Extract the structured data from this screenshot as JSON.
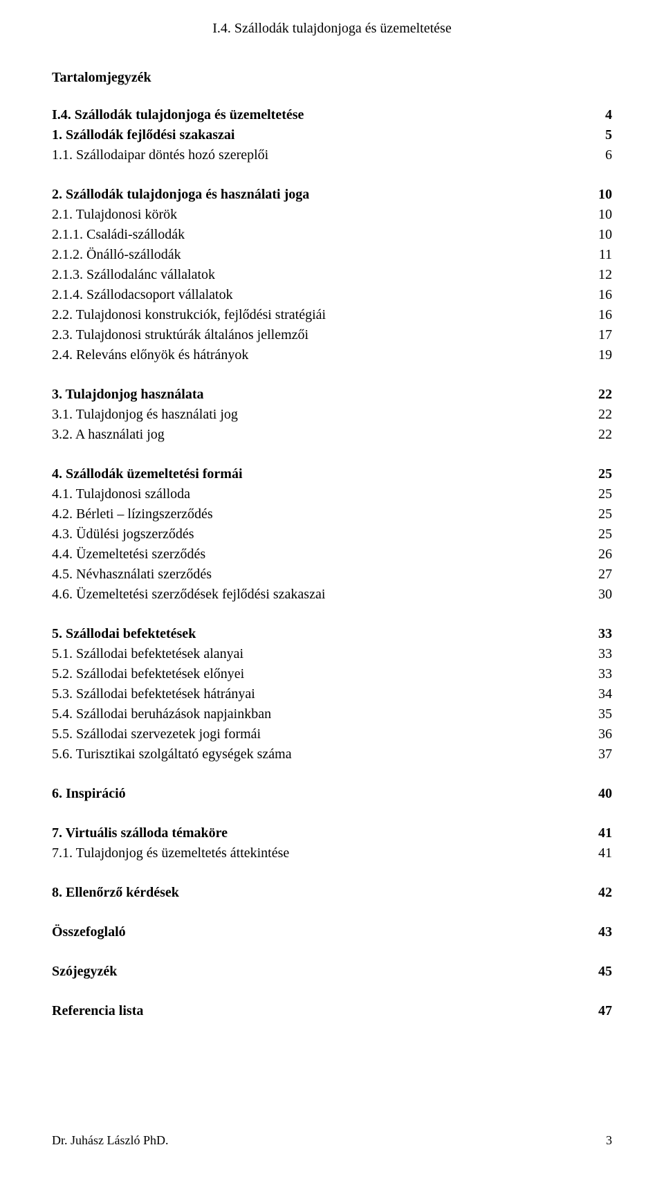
{
  "header": "I.4. Szállodák tulajdonjoga és üzemeltetése",
  "tocTitle": "Tartalomjegyzék",
  "sections": [
    {
      "items": [
        {
          "label": "I.4. Szállodák tulajdonjoga és üzemeltetése",
          "page": "4",
          "bold": true
        },
        {
          "label": "1. Szállodák fejlődési szakaszai",
          "page": "5",
          "bold": true
        },
        {
          "label": "1.1. Szállodaipar döntés hozó szereplői",
          "page": "6",
          "bold": false
        }
      ]
    },
    {
      "items": [
        {
          "label": "2. Szállodák tulajdonjoga és használati joga",
          "page": "10",
          "bold": true
        },
        {
          "label": "2.1. Tulajdonosi körök",
          "page": "10",
          "bold": false
        },
        {
          "label": "2.1.1. Családi-szállodák",
          "page": "10",
          "bold": false
        },
        {
          "label": "2.1.2. Önálló-szállodák",
          "page": "11",
          "bold": false
        },
        {
          "label": "2.1.3. Szállodalánc vállalatok",
          "page": "12",
          "bold": false
        },
        {
          "label": "2.1.4. Szállodacsoport vállalatok",
          "page": "16",
          "bold": false
        },
        {
          "label": "2.2. Tulajdonosi konstrukciók, fejlődési stratégiái",
          "page": "16",
          "bold": false
        },
        {
          "label": "2.3. Tulajdonosi struktúrák általános jellemzői",
          "page": "17",
          "bold": false
        },
        {
          "label": "2.4. Releváns előnyök és hátrányok",
          "page": "19",
          "bold": false
        }
      ]
    },
    {
      "items": [
        {
          "label": "3. Tulajdonjog használata",
          "page": "22",
          "bold": true
        },
        {
          "label": "3.1. Tulajdonjog és használati jog",
          "page": "22",
          "bold": false
        },
        {
          "label": "3.2. A használati jog",
          "page": "22",
          "bold": false
        }
      ]
    },
    {
      "items": [
        {
          "label": "4. Szállodák üzemeltetési formái",
          "page": "25",
          "bold": true
        },
        {
          "label": "4.1. Tulajdonosi szálloda",
          "page": "25",
          "bold": false
        },
        {
          "label": "4.2. Bérleti – lízingszerződés",
          "page": "25",
          "bold": false
        },
        {
          "label": "4.3. Üdülési jogszerződés",
          "page": "25",
          "bold": false
        },
        {
          "label": "4.4. Üzemeltetési szerződés",
          "page": "26",
          "bold": false
        },
        {
          "label": "4.5. Névhasználati szerződés",
          "page": "27",
          "bold": false
        },
        {
          "label": "4.6. Üzemeltetési szerződések fejlődési szakaszai",
          "page": "30",
          "bold": false
        }
      ]
    },
    {
      "items": [
        {
          "label": "5. Szállodai befektetések",
          "page": "33",
          "bold": true
        },
        {
          "label": "5.1. Szállodai befektetések alanyai",
          "page": "33",
          "bold": false
        },
        {
          "label": "5.2. Szállodai befektetések előnyei",
          "page": "33",
          "bold": false
        },
        {
          "label": "5.3. Szállodai befektetések hátrányai",
          "page": "34",
          "bold": false
        },
        {
          "label": "5.4. Szállodai beruházások napjainkban",
          "page": "35",
          "bold": false
        },
        {
          "label": "5.5. Szállodai szervezetek jogi formái",
          "page": "36",
          "bold": false
        },
        {
          "label": "5.6. Turisztikai szolgáltató egységek száma",
          "page": "37",
          "bold": false
        }
      ]
    },
    {
      "items": [
        {
          "label": "6. Inspiráció",
          "page": "40",
          "bold": true
        }
      ]
    },
    {
      "items": [
        {
          "label": "7. Virtuális szálloda témaköre",
          "page": "41",
          "bold": true
        },
        {
          "label": "7.1. Tulajdonjog és üzemeltetés áttekintése",
          "page": "41",
          "bold": false
        }
      ]
    },
    {
      "items": [
        {
          "label": "8. Ellenőrző kérdések",
          "page": "42",
          "bold": true
        }
      ]
    },
    {
      "items": [
        {
          "label": "Összefoglaló",
          "page": "43",
          "bold": true
        }
      ]
    },
    {
      "items": [
        {
          "label": "Szójegyzék",
          "page": "45",
          "bold": true
        }
      ]
    },
    {
      "items": [
        {
          "label": "Referencia lista",
          "page": "47",
          "bold": true
        }
      ]
    }
  ],
  "footer": {
    "author": "Dr. Juhász László PhD.",
    "pageNum": "3"
  }
}
